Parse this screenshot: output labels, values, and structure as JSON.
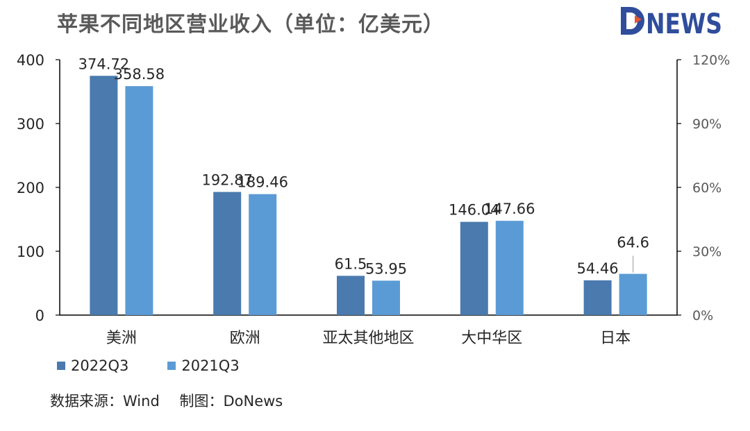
{
  "title": "苹果不同地区营业收入（单位：亿美元）",
  "logo_text": "DONEWS",
  "source": {
    "data_label": "数据来源：Wind",
    "made_label": "制图：DoNews"
  },
  "colors": {
    "series_2022": "#4a7aae",
    "series_2021": "#5b9bd5",
    "axis": "#000000",
    "text": "#262626",
    "title": "#595959",
    "logo_blue": "#2f4d9b",
    "logo_orange": "#e8542c"
  },
  "chart_data": {
    "type": "bar",
    "categories": [
      "美洲",
      "欧洲",
      "亚太其他地区",
      "大中华区",
      "日本"
    ],
    "series": [
      {
        "name": "2022Q3",
        "values": [
          374.72,
          192.87,
          61.5,
          146.04,
          54.46
        ],
        "labels": [
          "374.72",
          "192.87",
          "61.5",
          "146.04",
          "54.46"
        ]
      },
      {
        "name": "2021Q3",
        "values": [
          358.58,
          189.46,
          53.95,
          147.66,
          64.6
        ],
        "labels": [
          "358.58",
          "189.46",
          "53.95",
          "147.66",
          "64.6"
        ]
      }
    ],
    "ylim": [
      0,
      400
    ],
    "yticks": [
      "0",
      "100",
      "200",
      "300",
      "400"
    ],
    "ylim_right": [
      0,
      1.2
    ],
    "yticks_right": [
      "0%",
      "30%",
      "60%",
      "90%",
      "120%"
    ],
    "grid": false,
    "legend": "bottom-left"
  }
}
